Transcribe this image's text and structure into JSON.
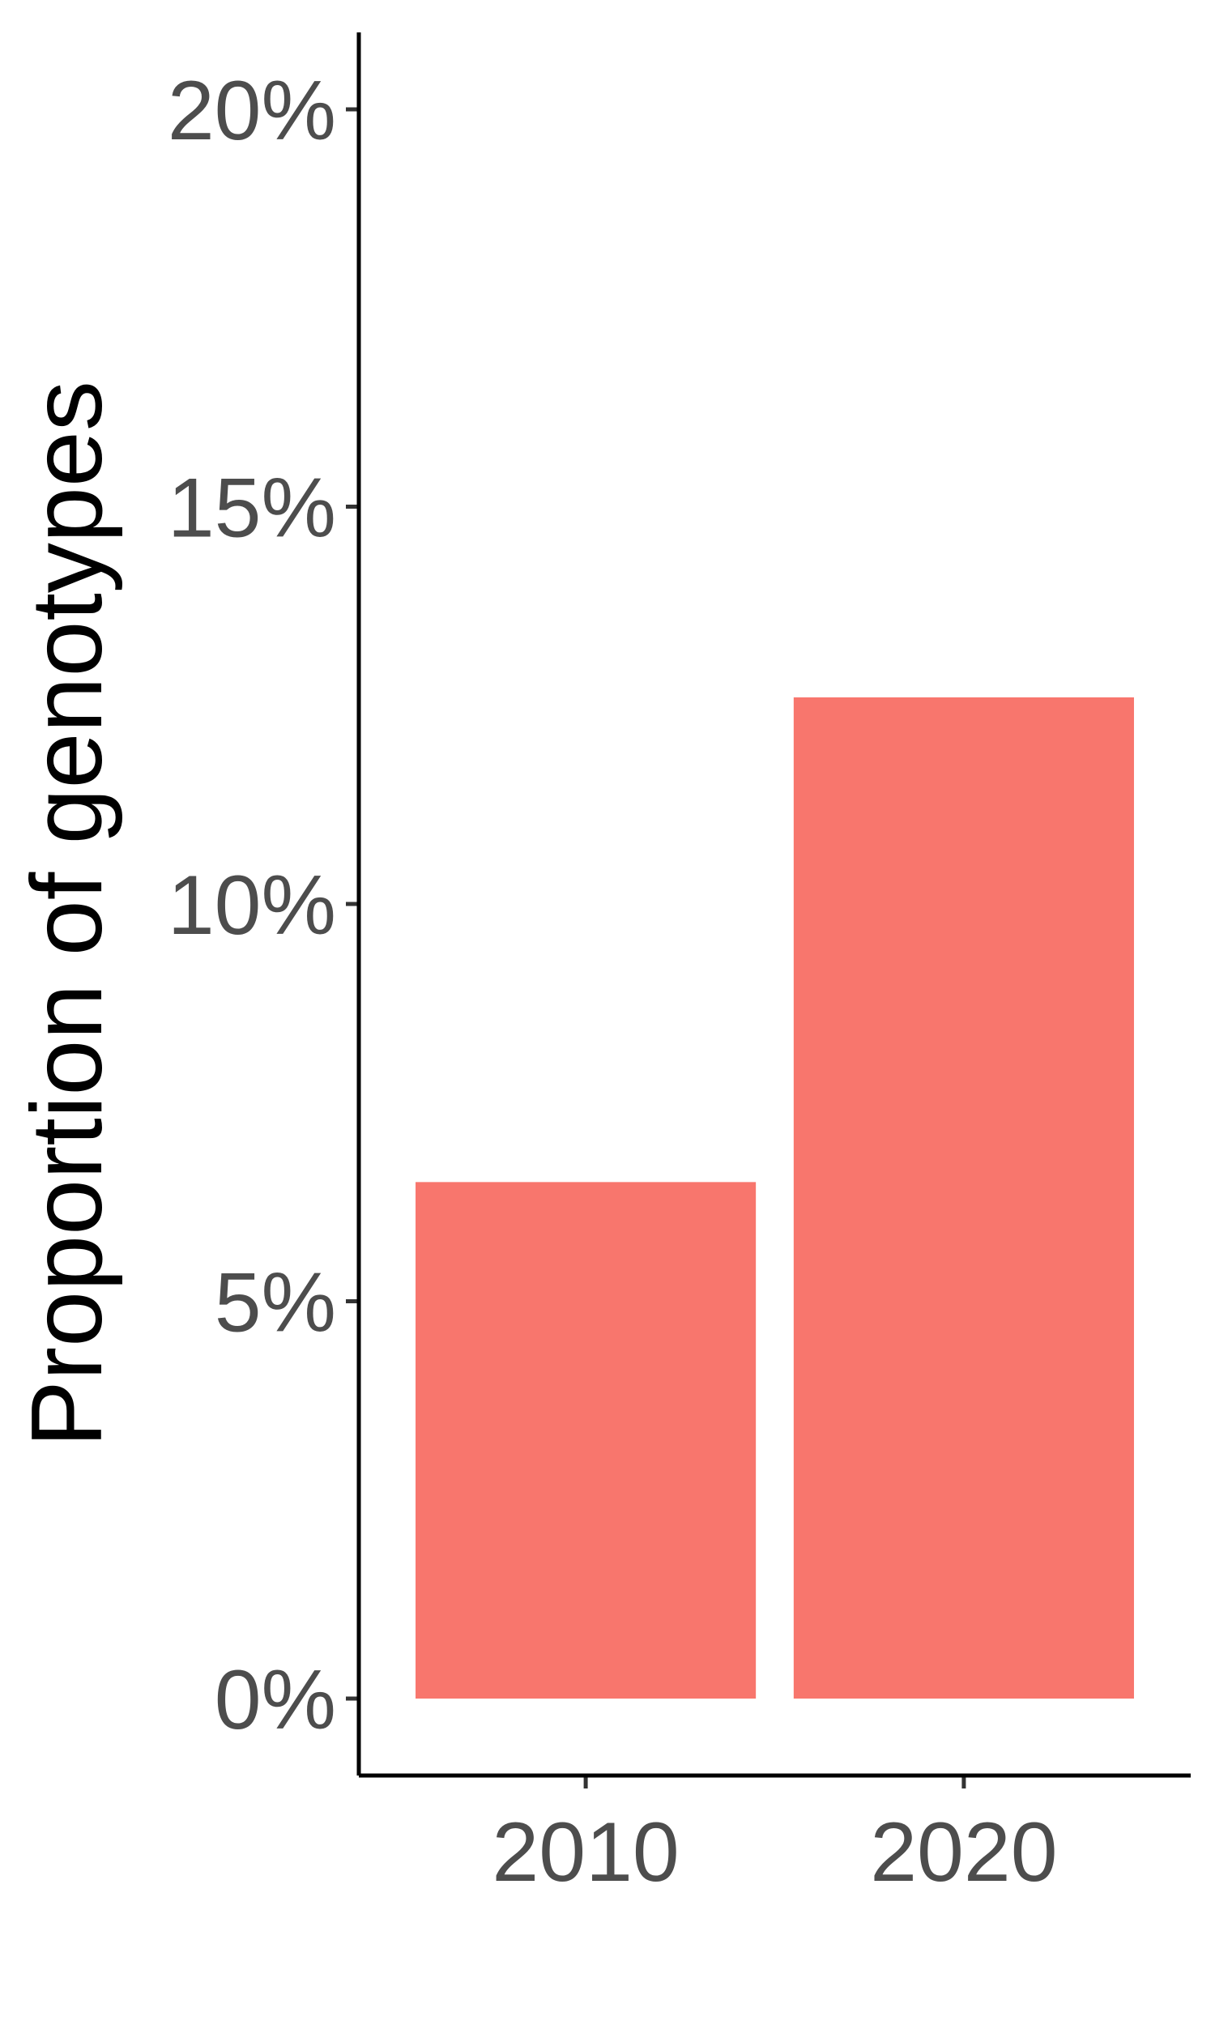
{
  "chart_data": {
    "type": "bar",
    "categories": [
      "2010",
      "2020"
    ],
    "values": [
      6.5,
      12.6
    ],
    "title": "",
    "xlabel": "",
    "ylabel": "Proportion of genotypes",
    "ylim": [
      -1,
      21
    ],
    "yticks": [
      0,
      5,
      10,
      15,
      20
    ],
    "ytick_labels": [
      "0%",
      "5%",
      "10%",
      "15%",
      "20%"
    ],
    "grid": false,
    "legend": "none",
    "bar_color": "#F8766D"
  }
}
